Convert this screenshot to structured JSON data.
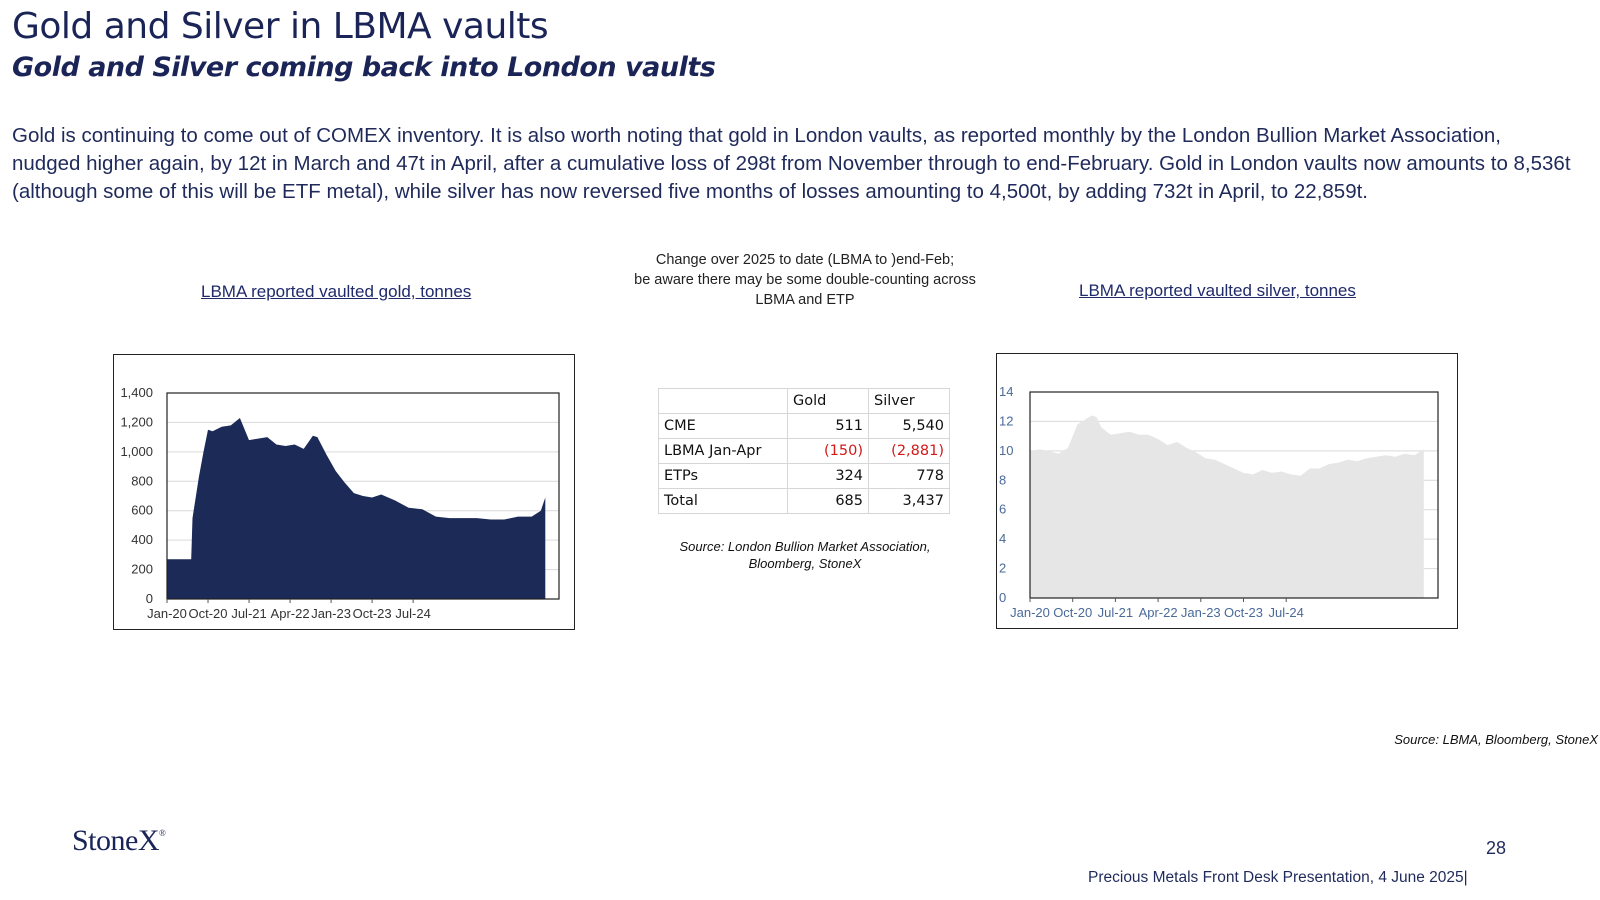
{
  "header": {
    "title": "Gold and Silver in LBMA vaults",
    "subtitle": "Gold and Silver coming back into London vaults"
  },
  "body": {
    "paragraph": "Gold is  continuing to come out of COMEX inventory.  It is also worth noting that gold in London vaults, as reported monthly by the London Bullion Market Association, nudged higher again, by 12t in March and 47t in April, after a cumulative loss of 298t from November through to end-February.  Gold in London vaults now amounts to 8,536t (although some of this will be ETF metal), while silver has now reversed five months of losses amounting to 4,500t, by adding 732t in April, to  22,859t."
  },
  "gold_chart": {
    "title": "LBMA reported vaulted gold, tonnes"
  },
  "silver_chart": {
    "title": "LBMA reported vaulted silver, tonnes"
  },
  "table": {
    "note_lines": [
      "Change over 2025 to date (LBMA to )end-Feb;",
      "be aware there may be some double-counting across",
      "LBMA and ETP"
    ],
    "headers": [
      "",
      "Gold",
      "Silver"
    ],
    "rows": [
      {
        "label": "CME",
        "gold": "511",
        "silver": "5,540",
        "negative": false
      },
      {
        "label": "LBMA Jan-Apr",
        "gold": "(150)",
        "silver": "(2,881)",
        "negative": true
      },
      {
        "label": "ETPs",
        "gold": "324",
        "silver": "778",
        "negative": false
      },
      {
        "label": "Total",
        "gold": "685",
        "silver": "3,437",
        "negative": false
      }
    ],
    "source_lines": [
      "Source: London Bullion Market Association,",
      "Bloomberg, StoneX"
    ]
  },
  "page_source": "Source: LBMA, Bloomberg, StoneX",
  "footer": {
    "logo": "StoneX",
    "logo_mark": "®",
    "page_number": "28",
    "presentation": "Precious Metals Front Desk Presentation, 4 June 2025|"
  },
  "chart_data": [
    {
      "type": "area",
      "title": "LBMA reported vaulted gold, tonnes",
      "color": "#1b2a56",
      "x_ticks": [
        "Jan-20",
        "Oct-20",
        "Jul-21",
        "Apr-22",
        "Jan-23",
        "Oct-23",
        "Jul-24"
      ],
      "y_ticks": [
        "0",
        "200",
        "400",
        "600",
        "800",
        "1,000",
        "1,200",
        "1,400"
      ],
      "ylim": [
        0,
        1400
      ],
      "x_months": [
        0,
        5.3,
        5.6,
        7,
        8,
        9,
        10,
        12,
        14,
        16,
        18,
        20,
        22,
        24,
        26,
        28,
        30,
        32,
        33,
        35,
        37,
        39,
        41,
        43,
        45,
        47,
        50,
        53,
        56,
        59,
        62,
        65,
        68,
        71,
        74,
        77,
        80,
        82,
        83
      ],
      "values": [
        270,
        270,
        550,
        830,
        1000,
        1150,
        1140,
        1170,
        1180,
        1230,
        1080,
        1090,
        1100,
        1050,
        1040,
        1050,
        1020,
        1110,
        1100,
        980,
        870,
        790,
        720,
        700,
        690,
        710,
        670,
        620,
        610,
        560,
        550,
        550,
        550,
        540,
        540,
        560,
        560,
        600,
        690
      ]
    },
    {
      "type": "area",
      "title": "LBMA reported vaulted silver, tonnes",
      "color": "#e6e6e6",
      "x_ticks": [
        "Jan-20",
        "Oct-20",
        "Jul-21",
        "Apr-22",
        "Jan-23",
        "Oct-23",
        "Jul-24"
      ],
      "y_ticks": [
        "0",
        "2",
        "4",
        "6",
        "8",
        "10",
        "12",
        "14"
      ],
      "ylim": [
        0,
        14
      ],
      "x_months": [
        0,
        2,
        4,
        6,
        8,
        10,
        12,
        13,
        14,
        15,
        17,
        19,
        21,
        23,
        25,
        27,
        29,
        31,
        33,
        35,
        37,
        39,
        41,
        43,
        45,
        47,
        49,
        51,
        53,
        55,
        57,
        59,
        61,
        63,
        65,
        67,
        69,
        71,
        73,
        75,
        77,
        79,
        81,
        83
      ],
      "values": [
        10,
        10.1,
        10,
        9.8,
        10.2,
        11.8,
        12.2,
        12.4,
        12.3,
        11.6,
        11.1,
        11.2,
        11.3,
        11.1,
        11.1,
        10.8,
        10.4,
        10.6,
        10.2,
        9.9,
        9.5,
        9.4,
        9.1,
        8.8,
        8.5,
        8.4,
        8.7,
        8.5,
        8.6,
        8.4,
        8.3,
        8.8,
        8.8,
        9.1,
        9.2,
        9.4,
        9.3,
        9.5,
        9.6,
        9.7,
        9.6,
        9.8,
        9.7,
        10.1
      ]
    }
  ]
}
